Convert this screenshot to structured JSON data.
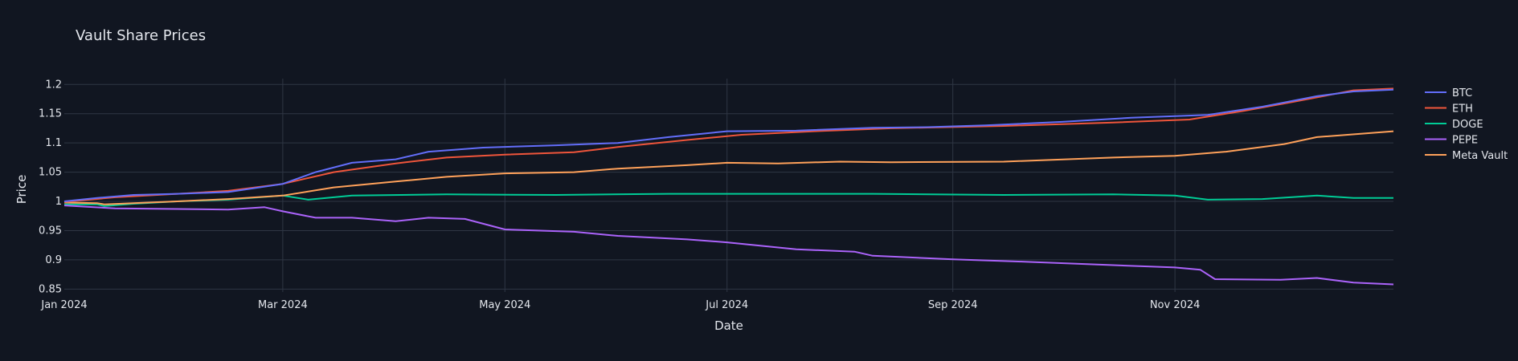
{
  "chart_data": {
    "type": "line",
    "title": "Vault Share Prices",
    "xlabel": "Date",
    "ylabel": "Price",
    "xlim": [
      "2024-01-01",
      "2024-12-31"
    ],
    "ylim": [
      0.845,
      1.21
    ],
    "x_ticks": [
      {
        "date": "2024-01-01",
        "label": "Jan 2024"
      },
      {
        "date": "2024-03-01",
        "label": "Mar 2024"
      },
      {
        "date": "2024-05-01",
        "label": "May 2024"
      },
      {
        "date": "2024-07-01",
        "label": "Jul 2024"
      },
      {
        "date": "2024-09-01",
        "label": "Sep 2024"
      },
      {
        "date": "2024-11-01",
        "label": "Nov 2024"
      }
    ],
    "y_ticks": [
      {
        "value": 0.85,
        "label": "0.85"
      },
      {
        "value": 0.9,
        "label": "0.9"
      },
      {
        "value": 0.95,
        "label": "0.95"
      },
      {
        "value": 1.0,
        "label": "1"
      },
      {
        "value": 1.05,
        "label": "1.05"
      },
      {
        "value": 1.1,
        "label": "1.1"
      },
      {
        "value": 1.15,
        "label": "1.15"
      },
      {
        "value": 1.2,
        "label": "1.2"
      }
    ],
    "grid": true,
    "legend_position": "right",
    "series": [
      {
        "name": "BTC",
        "color": "#636efa",
        "points": [
          [
            "2024-01-01",
            1.0
          ],
          [
            "2024-01-10",
            1.006
          ],
          [
            "2024-01-20",
            1.011
          ],
          [
            "2024-02-01",
            1.013
          ],
          [
            "2024-02-15",
            1.016
          ],
          [
            "2024-03-01",
            1.03
          ],
          [
            "2024-03-10",
            1.05
          ],
          [
            "2024-03-20",
            1.066
          ],
          [
            "2024-04-01",
            1.072
          ],
          [
            "2024-04-10",
            1.085
          ],
          [
            "2024-04-25",
            1.092
          ],
          [
            "2024-05-15",
            1.096
          ],
          [
            "2024-06-01",
            1.1
          ],
          [
            "2024-06-15",
            1.11
          ],
          [
            "2024-07-01",
            1.12
          ],
          [
            "2024-07-20",
            1.121
          ],
          [
            "2024-08-10",
            1.126
          ],
          [
            "2024-08-25",
            1.127
          ],
          [
            "2024-09-10",
            1.13
          ],
          [
            "2024-10-01",
            1.136
          ],
          [
            "2024-10-20",
            1.143
          ],
          [
            "2024-11-10",
            1.148
          ],
          [
            "2024-11-25",
            1.162
          ],
          [
            "2024-12-10",
            1.18
          ],
          [
            "2024-12-20",
            1.188
          ],
          [
            "2024-12-31",
            1.191
          ]
        ]
      },
      {
        "name": "ETH",
        "color": "#ef553b",
        "points": [
          [
            "2024-01-01",
            0.999
          ],
          [
            "2024-01-15",
            1.007
          ],
          [
            "2024-02-01",
            1.013
          ],
          [
            "2024-02-15",
            1.018
          ],
          [
            "2024-03-01",
            1.03
          ],
          [
            "2024-03-15",
            1.05
          ],
          [
            "2024-04-01",
            1.065
          ],
          [
            "2024-04-15",
            1.075
          ],
          [
            "2024-05-01",
            1.08
          ],
          [
            "2024-05-20",
            1.084
          ],
          [
            "2024-06-01",
            1.093
          ],
          [
            "2024-06-20",
            1.105
          ],
          [
            "2024-07-05",
            1.114
          ],
          [
            "2024-07-25",
            1.12
          ],
          [
            "2024-08-15",
            1.125
          ],
          [
            "2024-09-15",
            1.129
          ],
          [
            "2024-10-15",
            1.135
          ],
          [
            "2024-11-05",
            1.14
          ],
          [
            "2024-11-20",
            1.155
          ],
          [
            "2024-12-05",
            1.172
          ],
          [
            "2024-12-20",
            1.19
          ],
          [
            "2024-12-31",
            1.193
          ]
        ]
      },
      {
        "name": "DOGE",
        "color": "#00cc96",
        "points": [
          [
            "2024-01-01",
            0.995
          ],
          [
            "2024-01-10",
            0.995
          ],
          [
            "2024-01-12",
            0.992
          ],
          [
            "2024-01-20",
            0.996
          ],
          [
            "2024-02-01",
            1.0
          ],
          [
            "2024-02-15",
            1.003
          ],
          [
            "2024-03-01",
            1.01
          ],
          [
            "2024-03-08",
            1.003
          ],
          [
            "2024-03-20",
            1.01
          ],
          [
            "2024-04-15",
            1.012
          ],
          [
            "2024-05-15",
            1.011
          ],
          [
            "2024-06-15",
            1.013
          ],
          [
            "2024-07-15",
            1.013
          ],
          [
            "2024-08-10",
            1.013
          ],
          [
            "2024-09-15",
            1.011
          ],
          [
            "2024-10-15",
            1.012
          ],
          [
            "2024-11-01",
            1.01
          ],
          [
            "2024-11-10",
            1.003
          ],
          [
            "2024-11-25",
            1.004
          ],
          [
            "2024-12-10",
            1.01
          ],
          [
            "2024-12-20",
            1.006
          ],
          [
            "2024-12-31",
            1.006
          ]
        ]
      },
      {
        "name": "PEPE",
        "color": "#ab63fa",
        "points": [
          [
            "2024-01-01",
            0.993
          ],
          [
            "2024-01-15",
            0.988
          ],
          [
            "2024-02-01",
            0.987
          ],
          [
            "2024-02-15",
            0.986
          ],
          [
            "2024-02-25",
            0.99
          ],
          [
            "2024-03-01",
            0.983
          ],
          [
            "2024-03-10",
            0.972
          ],
          [
            "2024-03-20",
            0.972
          ],
          [
            "2024-04-01",
            0.966
          ],
          [
            "2024-04-10",
            0.972
          ],
          [
            "2024-04-20",
            0.97
          ],
          [
            "2024-05-01",
            0.952
          ],
          [
            "2024-05-20",
            0.948
          ],
          [
            "2024-06-01",
            0.941
          ],
          [
            "2024-06-20",
            0.935
          ],
          [
            "2024-07-01",
            0.93
          ],
          [
            "2024-07-20",
            0.918
          ],
          [
            "2024-08-05",
            0.914
          ],
          [
            "2024-08-10",
            0.907
          ],
          [
            "2024-09-01",
            0.901
          ],
          [
            "2024-09-20",
            0.897
          ],
          [
            "2024-10-15",
            0.891
          ],
          [
            "2024-11-01",
            0.887
          ],
          [
            "2024-11-08",
            0.883
          ],
          [
            "2024-11-12",
            0.867
          ],
          [
            "2024-11-30",
            0.866
          ],
          [
            "2024-12-10",
            0.869
          ],
          [
            "2024-12-20",
            0.861
          ],
          [
            "2024-12-31",
            0.858
          ]
        ]
      },
      {
        "name": "Meta Vault",
        "color": "#ffa15a",
        "points": [
          [
            "2024-01-01",
            0.998
          ],
          [
            "2024-01-10",
            0.997
          ],
          [
            "2024-01-12",
            0.995
          ],
          [
            "2024-02-01",
            1.0
          ],
          [
            "2024-02-15",
            1.004
          ],
          [
            "2024-03-01",
            1.01
          ],
          [
            "2024-03-15",
            1.024
          ],
          [
            "2024-04-01",
            1.034
          ],
          [
            "2024-04-15",
            1.042
          ],
          [
            "2024-05-01",
            1.048
          ],
          [
            "2024-05-20",
            1.05
          ],
          [
            "2024-06-01",
            1.056
          ],
          [
            "2024-06-20",
            1.062
          ],
          [
            "2024-07-01",
            1.066
          ],
          [
            "2024-07-15",
            1.065
          ],
          [
            "2024-08-01",
            1.068
          ],
          [
            "2024-08-15",
            1.067
          ],
          [
            "2024-09-15",
            1.068
          ],
          [
            "2024-10-15",
            1.075
          ],
          [
            "2024-11-01",
            1.078
          ],
          [
            "2024-11-15",
            1.085
          ],
          [
            "2024-12-01",
            1.098
          ],
          [
            "2024-12-10",
            1.11
          ],
          [
            "2024-12-31",
            1.12
          ]
        ]
      }
    ]
  }
}
